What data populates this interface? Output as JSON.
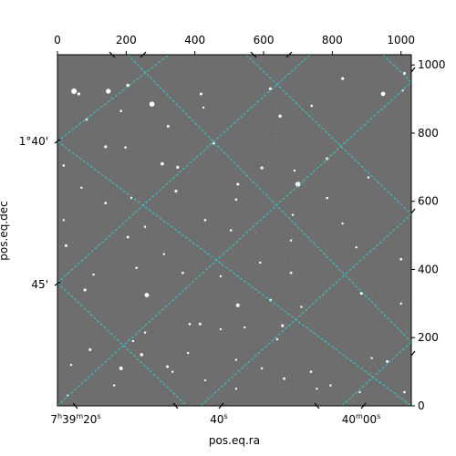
{
  "chart_data": {
    "type": "scatter",
    "image_kind": "grayscale astronomical image with WCS coordinate grid",
    "pixel_axes": {
      "x_ticks": [
        0,
        200,
        400,
        600,
        800,
        1000
      ],
      "x_tick_labels": [
        "0",
        "200",
        "400",
        "600",
        "800",
        "1000"
      ],
      "xlim": [
        0,
        1030
      ],
      "y_ticks": [
        0,
        200,
        400,
        600,
        800,
        1000
      ],
      "y_tick_labels": [
        "0",
        "200",
        "400",
        "600",
        "800",
        "1000"
      ],
      "ylim": [
        0,
        1030
      ]
    },
    "world_axes": {
      "xlabel": "pos.eq.ra",
      "ylabel": "pos.eq.dec",
      "ra_tick_labels": [
        "7h39m20s",
        "40s",
        "40m00s"
      ],
      "dec_tick_labels": [
        "1°40'",
        "45'"
      ]
    },
    "grid": true,
    "grid_color": "#33cccc",
    "colors": {
      "background": "#6e6e6e",
      "star": "#ffffff",
      "grid": "#33cccc"
    },
    "stars": [
      {
        "x": 48,
        "y": 923,
        "m": 3
      },
      {
        "x": 148,
        "y": 923,
        "m": 2.6
      },
      {
        "x": 275,
        "y": 885,
        "m": 2.8
      },
      {
        "x": 205,
        "y": 940,
        "m": 1.8
      },
      {
        "x": 62,
        "y": 915,
        "m": 1.6
      },
      {
        "x": 418,
        "y": 915,
        "m": 1.5
      },
      {
        "x": 620,
        "y": 930,
        "m": 1.6
      },
      {
        "x": 830,
        "y": 960,
        "m": 1.6
      },
      {
        "x": 948,
        "y": 915,
        "m": 2.4
      },
      {
        "x": 1010,
        "y": 975,
        "m": 1.5
      },
      {
        "x": 85,
        "y": 840,
        "m": 1.3
      },
      {
        "x": 185,
        "y": 865,
        "m": 1.3
      },
      {
        "x": 322,
        "y": 820,
        "m": 1.5
      },
      {
        "x": 425,
        "y": 875,
        "m": 1.2
      },
      {
        "x": 648,
        "y": 850,
        "m": 1.7
      },
      {
        "x": 740,
        "y": 880,
        "m": 1.3
      },
      {
        "x": 1005,
        "y": 925,
        "m": 1.2
      },
      {
        "x": 140,
        "y": 760,
        "m": 1.6
      },
      {
        "x": 305,
        "y": 710,
        "m": 1.8
      },
      {
        "x": 350,
        "y": 700,
        "m": 1.6
      },
      {
        "x": 198,
        "y": 758,
        "m": 1.3
      },
      {
        "x": 455,
        "y": 770,
        "m": 1.4
      },
      {
        "x": 595,
        "y": 698,
        "m": 1.6
      },
      {
        "x": 525,
        "y": 650,
        "m": 1.5
      },
      {
        "x": 700,
        "y": 650,
        "m": 2.8
      },
      {
        "x": 785,
        "y": 725,
        "m": 1.6
      },
      {
        "x": 690,
        "y": 690,
        "m": 1.2
      },
      {
        "x": 905,
        "y": 670,
        "m": 1.2
      },
      {
        "x": 18,
        "y": 705,
        "m": 1.3
      },
      {
        "x": 70,
        "y": 640,
        "m": 1.2
      },
      {
        "x": 140,
        "y": 595,
        "m": 1.4
      },
      {
        "x": 215,
        "y": 610,
        "m": 1.2
      },
      {
        "x": 345,
        "y": 630,
        "m": 1.5
      },
      {
        "x": 255,
        "y": 525,
        "m": 1.2
      },
      {
        "x": 520,
        "y": 605,
        "m": 1.3
      },
      {
        "x": 685,
        "y": 560,
        "m": 1.2
      },
      {
        "x": 785,
        "y": 610,
        "m": 1.3
      },
      {
        "x": 830,
        "y": 535,
        "m": 1.2
      },
      {
        "x": 18,
        "y": 545,
        "m": 1.2
      },
      {
        "x": 25,
        "y": 470,
        "m": 1.5
      },
      {
        "x": 205,
        "y": 495,
        "m": 1.4
      },
      {
        "x": 430,
        "y": 545,
        "m": 1.3
      },
      {
        "x": 505,
        "y": 515,
        "m": 1.3
      },
      {
        "x": 680,
        "y": 485,
        "m": 1.2
      },
      {
        "x": 1000,
        "y": 430,
        "m": 1.4
      },
      {
        "x": 870,
        "y": 465,
        "m": 1.2
      },
      {
        "x": 590,
        "y": 420,
        "m": 1.2
      },
      {
        "x": 105,
        "y": 385,
        "m": 1.2
      },
      {
        "x": 310,
        "y": 445,
        "m": 1.2
      },
      {
        "x": 365,
        "y": 390,
        "m": 1.3
      },
      {
        "x": 230,
        "y": 405,
        "m": 1.3
      },
      {
        "x": 475,
        "y": 380,
        "m": 1.2
      },
      {
        "x": 680,
        "y": 390,
        "m": 1.3
      },
      {
        "x": 80,
        "y": 340,
        "m": 1.6
      },
      {
        "x": 260,
        "y": 325,
        "m": 2.4
      },
      {
        "x": 525,
        "y": 295,
        "m": 2.0
      },
      {
        "x": 620,
        "y": 310,
        "m": 1.5
      },
      {
        "x": 885,
        "y": 330,
        "m": 1.6
      },
      {
        "x": 1000,
        "y": 300,
        "m": 1.2
      },
      {
        "x": 385,
        "y": 240,
        "m": 1.3
      },
      {
        "x": 415,
        "y": 240,
        "m": 1.5
      },
      {
        "x": 475,
        "y": 225,
        "m": 1.2
      },
      {
        "x": 545,
        "y": 230,
        "m": 1.2
      },
      {
        "x": 655,
        "y": 235,
        "m": 1.6
      },
      {
        "x": 640,
        "y": 195,
        "m": 1.2
      },
      {
        "x": 710,
        "y": 290,
        "m": 1.2
      },
      {
        "x": 255,
        "y": 215,
        "m": 1.2
      },
      {
        "x": 220,
        "y": 190,
        "m": 1.2
      },
      {
        "x": 95,
        "y": 165,
        "m": 1.5
      },
      {
        "x": 185,
        "y": 110,
        "m": 2.0
      },
      {
        "x": 245,
        "y": 150,
        "m": 1.8
      },
      {
        "x": 320,
        "y": 115,
        "m": 1.5
      },
      {
        "x": 335,
        "y": 100,
        "m": 1.2
      },
      {
        "x": 380,
        "y": 155,
        "m": 1.2
      },
      {
        "x": 520,
        "y": 135,
        "m": 1.2
      },
      {
        "x": 595,
        "y": 110,
        "m": 1.2
      },
      {
        "x": 660,
        "y": 80,
        "m": 1.4
      },
      {
        "x": 738,
        "y": 100,
        "m": 1.3
      },
      {
        "x": 795,
        "y": 60,
        "m": 1.2
      },
      {
        "x": 915,
        "y": 140,
        "m": 1.2
      },
      {
        "x": 960,
        "y": 130,
        "m": 1.5
      },
      {
        "x": 1010,
        "y": 40,
        "m": 1.3
      },
      {
        "x": 40,
        "y": 120,
        "m": 1.2
      },
      {
        "x": 165,
        "y": 60,
        "m": 1.2
      },
      {
        "x": 520,
        "y": 50,
        "m": 1.2
      },
      {
        "x": 755,
        "y": 50,
        "m": 1.2
      },
      {
        "x": 30,
        "y": 30,
        "m": 1.2
      },
      {
        "x": 430,
        "y": 75,
        "m": 1.2
      },
      {
        "x": 880,
        "y": 40,
        "m": 1.2
      }
    ]
  },
  "labels": {
    "x_axis_title": "pos.eq.ra",
    "y_axis_title": "pos.eq.dec",
    "ra_labels": [
      {
        "h": "7",
        "hu": "h",
        "m": "39",
        "mu": "m",
        "s": "20",
        "su": "s"
      },
      {
        "h": "",
        "hu": "",
        "m": "",
        "mu": "",
        "s": "40",
        "su": "s"
      },
      {
        "h": "",
        "hu": "",
        "m": "40",
        "mu": "m",
        "s": "00",
        "su": "s"
      }
    ],
    "dec_labels": [
      "1°40'",
      "45'"
    ]
  }
}
